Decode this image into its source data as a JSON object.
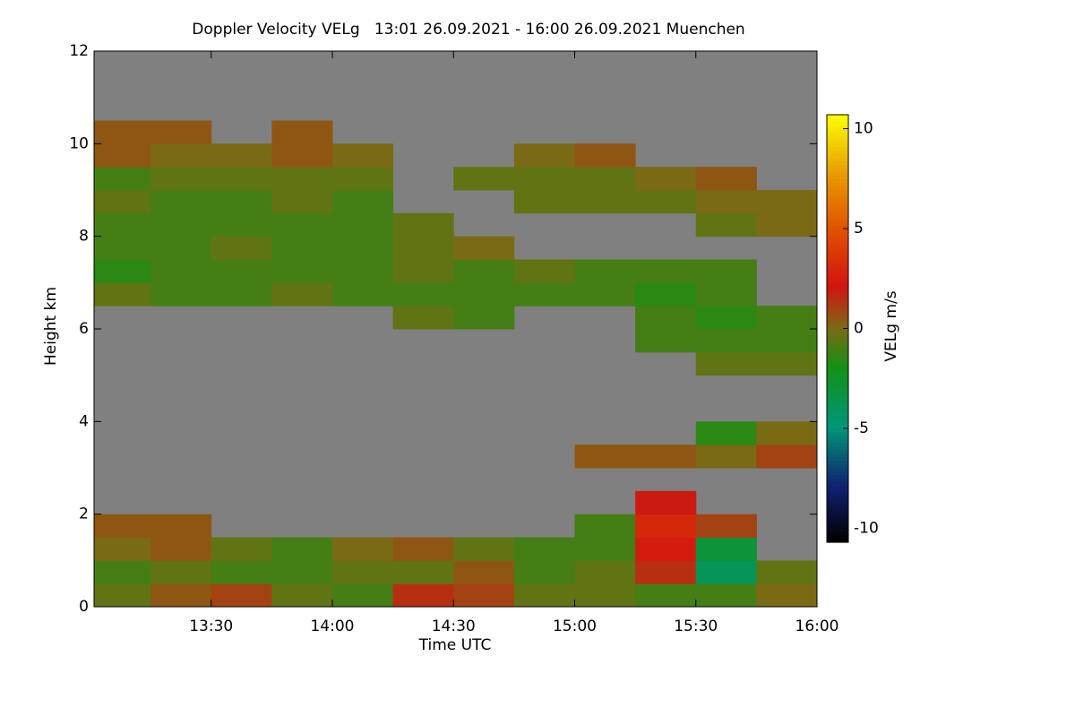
{
  "chart_data": {
    "type": "heatmap",
    "title": "Doppler Velocity VELg   13:01 26.09.2021 - 16:00 26.09.2021 Muenchen",
    "x_label": "Time UTC",
    "y_label": "Height km",
    "colorbar_label": "VELg m/s",
    "xlim": [
      13.0167,
      16.0
    ],
    "xticks": [
      {
        "value": 13.5,
        "label": "13:30"
      },
      {
        "value": 14.0,
        "label": "14:00"
      },
      {
        "value": 14.5,
        "label": "14:30"
      },
      {
        "value": 15.0,
        "label": "15:00"
      },
      {
        "value": 15.5,
        "label": "15:30"
      },
      {
        "value": 16.0,
        "label": "16:00"
      }
    ],
    "ylim": [
      0,
      12
    ],
    "yticks": [
      0,
      2,
      4,
      6,
      8,
      10,
      12
    ],
    "zlim": [
      -10.7,
      10.7
    ],
    "zticks": [
      -10,
      -5,
      0,
      5,
      10
    ],
    "no_signal_color": "#808080",
    "x": [
      13.125,
      13.375,
      13.625,
      13.875,
      14.125,
      14.375,
      14.625,
      14.875,
      15.125,
      15.375,
      15.625,
      15.875
    ],
    "y": [
      0.25,
      0.75,
      1.25,
      1.75,
      2.25,
      2.75,
      3.25,
      3.75,
      4.25,
      4.75,
      5.25,
      5.75,
      6.25,
      6.75,
      7.25,
      7.75,
      8.25,
      8.75,
      9.25,
      9.75,
      10.25,
      10.75,
      11.25,
      11.75
    ],
    "z": [
      [
        -0.5,
        0.5,
        1,
        -0.5,
        -1,
        1.5,
        1,
        -0.5,
        -0.5,
        -1,
        -1,
        0
      ],
      [
        -1,
        -0.5,
        -1,
        -1,
        -0.5,
        -0.5,
        0.5,
        -1,
        -0.5,
        1.5,
        -4,
        -0.5
      ],
      [
        0,
        0.5,
        -0.5,
        -1,
        0,
        0.5,
        -0.5,
        -1,
        -1,
        2.5,
        -3,
        null
      ],
      [
        0.5,
        0.5,
        null,
        null,
        null,
        null,
        null,
        null,
        -1,
        3,
        1,
        null
      ],
      [
        null,
        null,
        null,
        null,
        null,
        null,
        null,
        null,
        null,
        2,
        null,
        null
      ],
      [
        null,
        null,
        null,
        null,
        null,
        null,
        null,
        null,
        null,
        null,
        null,
        null
      ],
      [
        null,
        null,
        null,
        null,
        null,
        null,
        null,
        null,
        0.5,
        0.5,
        0,
        1
      ],
      [
        null,
        null,
        null,
        null,
        null,
        null,
        null,
        null,
        null,
        null,
        -1.5,
        0
      ],
      [
        null,
        null,
        null,
        null,
        null,
        null,
        null,
        null,
        null,
        null,
        null,
        null
      ],
      [
        null,
        null,
        null,
        null,
        null,
        null,
        null,
        null,
        null,
        null,
        null,
        null
      ],
      [
        null,
        null,
        null,
        null,
        null,
        null,
        null,
        null,
        null,
        null,
        -0.5,
        -0.5
      ],
      [
        null,
        null,
        null,
        null,
        null,
        null,
        null,
        null,
        null,
        -1,
        -1,
        -1
      ],
      [
        null,
        null,
        null,
        null,
        null,
        -0.5,
        -1,
        null,
        null,
        -1,
        -1.5,
        -1
      ],
      [
        -0.5,
        -1,
        -1,
        -0.5,
        -1,
        -1,
        -1,
        -1,
        -1,
        -1.5,
        -1,
        null
      ],
      [
        -1.5,
        -1,
        -1,
        -1,
        -1,
        -0.5,
        -1,
        -0.5,
        -1,
        -1,
        -1,
        null
      ],
      [
        -1,
        -1,
        -0.5,
        -1,
        -1,
        -0.5,
        0,
        null,
        null,
        null,
        null,
        null
      ],
      [
        -1,
        -1,
        -1,
        -1,
        -1,
        -0.5,
        null,
        null,
        null,
        null,
        -0.5,
        0
      ],
      [
        -0.5,
        -1,
        -1,
        -0.5,
        -1,
        null,
        null,
        -0.5,
        -0.5,
        -0.5,
        0,
        0
      ],
      [
        -1,
        -0.5,
        -0.5,
        -0.5,
        -0.5,
        null,
        -0.5,
        -0.5,
        -0.5,
        0,
        0.5,
        null
      ],
      [
        0.5,
        0,
        0,
        0.5,
        0,
        null,
        null,
        0,
        0.5,
        null,
        null,
        null
      ],
      [
        0.5,
        0.5,
        null,
        0.5,
        null,
        null,
        null,
        null,
        null,
        null,
        null,
        null
      ],
      [
        null,
        null,
        null,
        null,
        null,
        null,
        null,
        null,
        null,
        null,
        null,
        null
      ],
      [
        null,
        null,
        null,
        null,
        null,
        null,
        null,
        null,
        null,
        null,
        null,
        null
      ],
      [
        null,
        null,
        null,
        null,
        null,
        null,
        null,
        null,
        null,
        null,
        null,
        null
      ]
    ]
  }
}
